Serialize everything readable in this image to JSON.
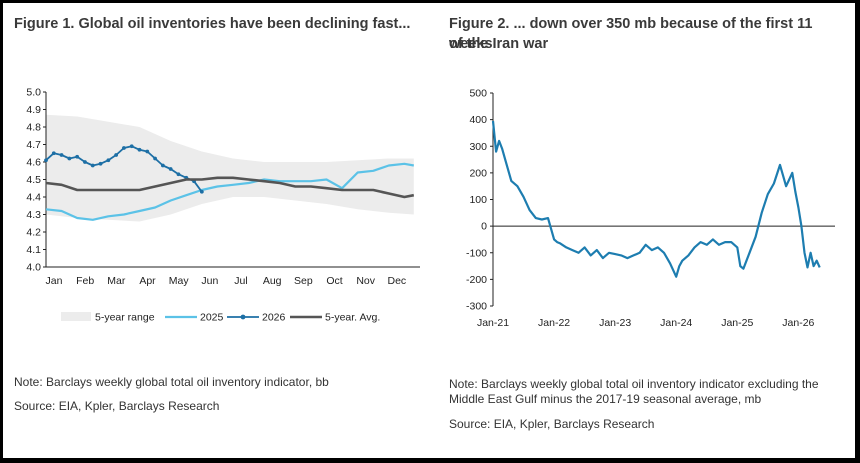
{
  "figure1": {
    "title": "Figure 1. Global oil inventories have been declining fast...",
    "note": "Note: Barclays weekly global total oil inventory indicator, bb",
    "source": "Source: EIA, Kpler, Barclays Research"
  },
  "figure2": {
    "title_line1": "Figure 2. ... down over 350 mb because of the first 11 weeks",
    "title_line2": "of the Iran war",
    "note_line1": "Note: Barclays weekly global total oil inventory indicator excluding the",
    "note_line2": "Middle East Gulf minus the 2017-19 seasonal average, mb",
    "source": "Source: EIA, Kpler, Barclays Research"
  },
  "colors": {
    "range": "#ececec",
    "y2025": "#5bc2e7",
    "y2026": "#1d6fa5",
    "avg": "#555555",
    "fig2_line": "#1d7db0"
  },
  "chart_data": [
    {
      "type": "line",
      "y_ticks": [
        "5.0",
        "4.9",
        "4.8",
        "4.7",
        "4.6",
        "4.5",
        "4.4",
        "4.3",
        "4.2",
        "4.1",
        "4.0"
      ],
      "ylim": [
        4.0,
        5.0
      ],
      "x_ticks": [
        "Jan",
        "Feb",
        "Mar",
        "Apr",
        "May",
        "Jun",
        "Jul",
        "Aug",
        "Sep",
        "Oct",
        "Nov",
        "Dec"
      ],
      "xlim": [
        0,
        12
      ],
      "grid": false,
      "legend_placement": "bottom",
      "range_band": {
        "name": "5-year range",
        "x": [
          0,
          1,
          2,
          3,
          4,
          5,
          6,
          7,
          8,
          9,
          10,
          11,
          11.8
        ],
        "upper": [
          4.87,
          4.86,
          4.83,
          4.8,
          4.72,
          4.66,
          4.62,
          4.6,
          4.6,
          4.6,
          4.61,
          4.62,
          4.62
        ],
        "lower": [
          4.3,
          4.28,
          4.27,
          4.26,
          4.3,
          4.36,
          4.4,
          4.4,
          4.38,
          4.36,
          4.33,
          4.31,
          4.3
        ]
      },
      "series": [
        {
          "name": "2025",
          "x": [
            0,
            0.5,
            1,
            1.5,
            2,
            2.5,
            3,
            3.5,
            4,
            4.5,
            5,
            5.5,
            6,
            6.5,
            7,
            7.5,
            8,
            8.5,
            9,
            9.5,
            10,
            10.5,
            11,
            11.5,
            11.8
          ],
          "values": [
            4.33,
            4.32,
            4.28,
            4.27,
            4.29,
            4.3,
            4.32,
            4.34,
            4.38,
            4.41,
            4.44,
            4.46,
            4.47,
            4.48,
            4.5,
            4.49,
            4.49,
            4.49,
            4.5,
            4.45,
            4.54,
            4.55,
            4.58,
            4.59,
            4.58
          ]
        },
        {
          "name": "2026",
          "x": [
            0,
            0.25,
            0.5,
            0.75,
            1,
            1.25,
            1.5,
            1.75,
            2,
            2.25,
            2.5,
            2.75,
            3,
            3.25,
            3.5,
            3.75,
            4,
            4.25,
            4.5,
            4.75,
            5
          ],
          "values": [
            4.61,
            4.65,
            4.64,
            4.62,
            4.63,
            4.6,
            4.58,
            4.59,
            4.61,
            4.64,
            4.68,
            4.69,
            4.67,
            4.66,
            4.62,
            4.58,
            4.56,
            4.53,
            4.51,
            4.49,
            4.43
          ]
        },
        {
          "name": "5-year. Avg.",
          "x": [
            0,
            0.5,
            1,
            1.5,
            2,
            2.5,
            3,
            3.5,
            4,
            4.5,
            5,
            5.5,
            6,
            6.5,
            7,
            7.5,
            8,
            8.5,
            9,
            9.5,
            10,
            10.5,
            11,
            11.5,
            11.8
          ],
          "values": [
            4.48,
            4.47,
            4.44,
            4.44,
            4.44,
            4.44,
            4.44,
            4.46,
            4.48,
            4.5,
            4.5,
            4.51,
            4.51,
            4.5,
            4.49,
            4.48,
            4.46,
            4.46,
            4.45,
            4.44,
            4.44,
            4.44,
            4.42,
            4.4,
            4.41
          ]
        }
      ]
    },
    {
      "type": "line",
      "y_ticks": [
        "500",
        "400",
        "300",
        "200",
        "100",
        "0",
        "-100",
        "-200",
        "-300"
      ],
      "ylim": [
        -300,
        500
      ],
      "x_ticks": [
        "Jan-21",
        "Jan-22",
        "Jan-23",
        "Jan-24",
        "Jan-25",
        "Jan-26"
      ],
      "xlim": [
        2021,
        2026.6
      ],
      "grid": false,
      "series": [
        {
          "name": "",
          "x": [
            2021.0,
            2021.05,
            2021.1,
            2021.15,
            2021.2,
            2021.3,
            2021.4,
            2021.5,
            2021.6,
            2021.7,
            2021.8,
            2021.9,
            2022.0,
            2022.05,
            2022.1,
            2022.2,
            2022.3,
            2022.4,
            2022.5,
            2022.6,
            2022.7,
            2022.8,
            2022.9,
            2023.0,
            2023.1,
            2023.2,
            2023.3,
            2023.4,
            2023.5,
            2023.6,
            2023.7,
            2023.8,
            2023.9,
            2024.0,
            2024.05,
            2024.1,
            2024.2,
            2024.3,
            2024.4,
            2024.5,
            2024.6,
            2024.7,
            2024.8,
            2024.9,
            2025.0,
            2025.05,
            2025.1,
            2025.2,
            2025.3,
            2025.4,
            2025.5,
            2025.6,
            2025.7,
            2025.8,
            2025.9,
            2025.95,
            2026.0,
            2026.05,
            2026.1,
            2026.15,
            2026.2,
            2026.25,
            2026.3,
            2026.35
          ],
          "values": [
            395,
            280,
            320,
            290,
            250,
            170,
            150,
            110,
            60,
            30,
            25,
            30,
            -50,
            -60,
            -65,
            -80,
            -90,
            -100,
            -80,
            -110,
            -90,
            -120,
            -100,
            -105,
            -110,
            -120,
            -110,
            -100,
            -70,
            -90,
            -80,
            -100,
            -140,
            -190,
            -150,
            -130,
            -110,
            -80,
            -60,
            -70,
            -50,
            -70,
            -60,
            -60,
            -80,
            -150,
            -160,
            -100,
            -40,
            50,
            120,
            160,
            230,
            150,
            200,
            130,
            70,
            0,
            -100,
            -155,
            -100,
            -150,
            -130,
            -155
          ]
        }
      ]
    }
  ]
}
